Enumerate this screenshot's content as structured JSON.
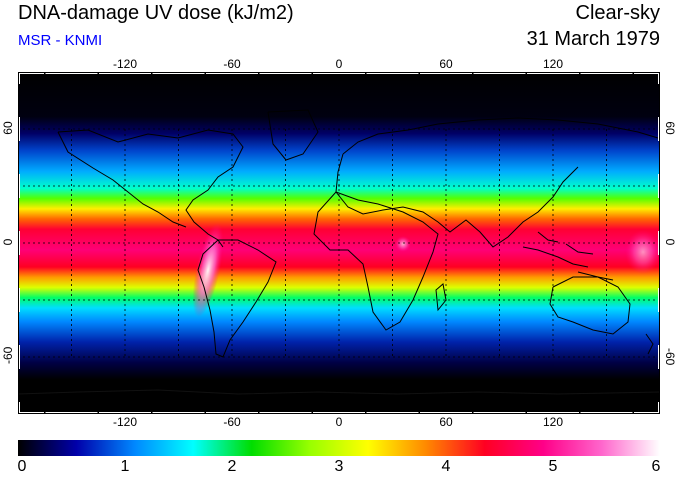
{
  "header": {
    "title": "DNA-damage UV dose (kJ/m2)",
    "subtitle": "MSR - KNMI",
    "condition": "Clear-sky",
    "date": "31 March 1979"
  },
  "map": {
    "lon_labels": [
      "-120",
      "-60",
      "0",
      "60",
      "120"
    ],
    "lon_values": [
      -120,
      -60,
      0,
      60,
      120
    ],
    "lat_labels": [
      "60",
      "0",
      "-60"
    ],
    "lat_values": [
      60,
      0,
      -60
    ],
    "lon_range": [
      -180,
      180
    ],
    "lat_range": [
      -90,
      90
    ],
    "grid_lon_step": 30,
    "grid_lat_step": 30,
    "grid_style": "dotted",
    "background": "#000000"
  },
  "colorbar": {
    "tick_labels": [
      "0",
      "1",
      "2",
      "3",
      "4",
      "5",
      "6"
    ],
    "range": [
      0,
      6
    ],
    "colors": [
      "#000000",
      "#0000aa",
      "#0088ff",
      "#00ffff",
      "#00dd00",
      "#99ff00",
      "#ffff00",
      "#ff8800",
      "#ff0022",
      "#ff0088",
      "#ff66cc",
      "#ffffff"
    ]
  }
}
